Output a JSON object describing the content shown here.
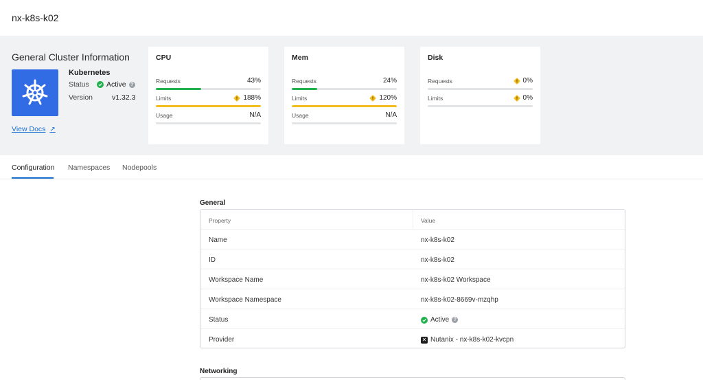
{
  "header": {
    "title": "nx-k8s-k02"
  },
  "cluster_info": {
    "title": "General Cluster Information",
    "provider_name": "Kubernetes",
    "status_label": "Status",
    "status_value": "Active",
    "version_label": "Version",
    "version_value": "v1.32.3",
    "view_docs": "View Docs",
    "logo_color": "#326ce5"
  },
  "cards": {
    "cpu": {
      "title": "CPU",
      "requests_label": "Requests",
      "requests_value": "43%",
      "requests_fraction": 0.43,
      "limits_label": "Limits",
      "limits_value": "188%",
      "limits_fraction": 1.0,
      "usage_label": "Usage",
      "usage_value": "N/A",
      "usage_fraction": 0
    },
    "mem": {
      "title": "Mem",
      "requests_label": "Requests",
      "requests_value": "24%",
      "requests_fraction": 0.24,
      "limits_label": "Limits",
      "limits_value": "120%",
      "limits_fraction": 1.0,
      "usage_label": "Usage",
      "usage_value": "N/A",
      "usage_fraction": 0
    },
    "disk": {
      "title": "Disk",
      "requests_label": "Requests",
      "requests_value": "0%",
      "requests_fraction": 0,
      "limits_label": "Limits",
      "limits_value": "0%",
      "limits_fraction": 0
    }
  },
  "colors": {
    "ok": "#22b14c",
    "warn": "#f2bd1d",
    "accent": "#1a6fd1"
  },
  "tabs": [
    {
      "label": "Configuration",
      "active": true
    },
    {
      "label": "Namespaces",
      "active": false
    },
    {
      "label": "Nodepools",
      "active": false
    }
  ],
  "general": {
    "title": "General",
    "col_property": "Property",
    "col_value": "Value",
    "rows": [
      {
        "property": "Name",
        "value": "nx-k8s-k02"
      },
      {
        "property": "ID",
        "value": "nx-k8s-k02"
      },
      {
        "property": "Workspace Name",
        "value": "nx-k8s-k02 Workspace"
      },
      {
        "property": "Workspace Namespace",
        "value": "nx-k8s-k02-8669v-mzqhp"
      },
      {
        "property": "Status",
        "value": "Active"
      },
      {
        "property": "Provider",
        "value": "Nutanix - nx-k8s-k02-kvcpn"
      }
    ]
  },
  "networking": {
    "title": "Networking"
  }
}
